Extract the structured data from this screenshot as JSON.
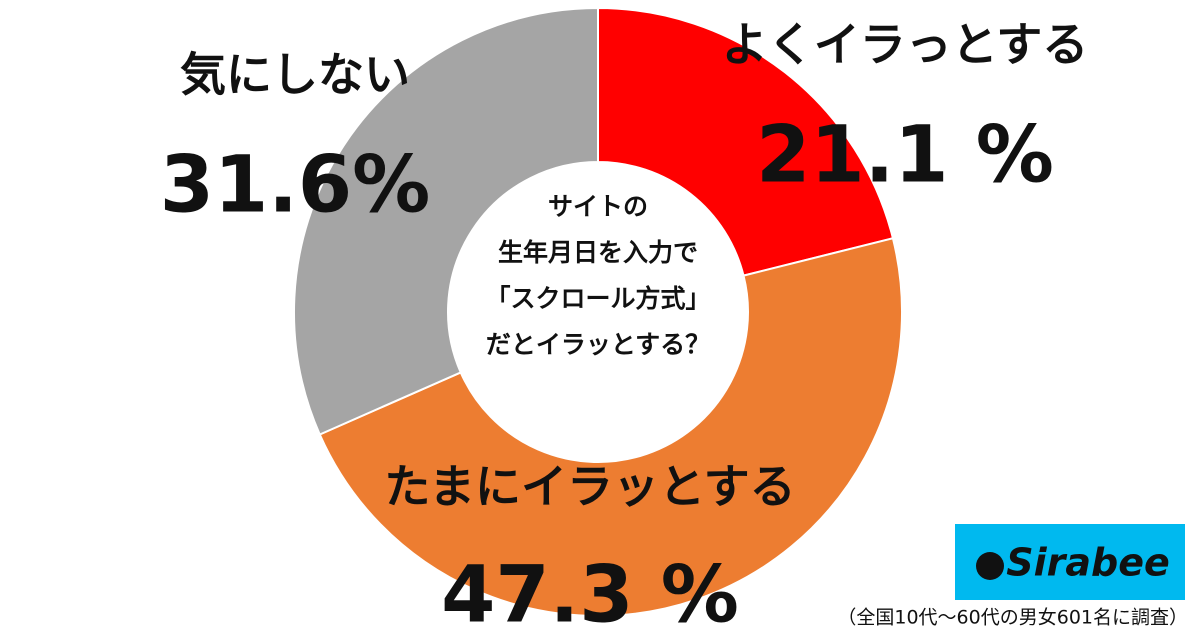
{
  "chart_data": {
    "type": "donut",
    "title": [
      "サイトの",
      "生年月日を入力で",
      "「スクロール方式」",
      "だとイラッとする？"
    ],
    "categories": [
      "よくイラっとする",
      "たまにイラッとする",
      "気にしない"
    ],
    "values": [
      21.1,
      47.3,
      31.6
    ],
    "value_labels": [
      "21.1 %",
      "47.3 %",
      "31.6%"
    ],
    "colors": [
      "#ff0000",
      "#ed7d31",
      "#a5a5a5"
    ]
  },
  "logo": "Sirabee",
  "source": "（全国10代～60代の男女601名に調査）"
}
